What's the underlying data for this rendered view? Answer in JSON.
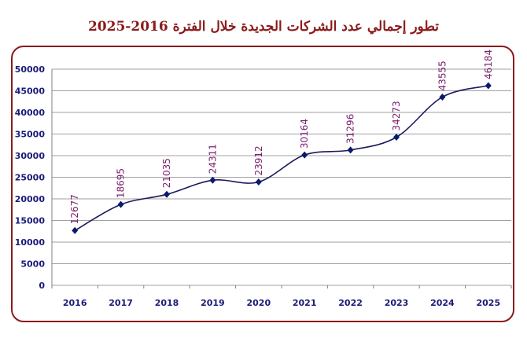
{
  "title": "تطور إجمالي عدد الشركات الجديدة خلال الفترة 2016-2025",
  "chart_data": {
    "type": "line",
    "title": "تطور إجمالي عدد الشركات الجديدة خلال الفترة 2016-2025",
    "categories": [
      "2016",
      "2017",
      "2018",
      "2019",
      "2020",
      "2021",
      "2022",
      "2023",
      "2024",
      "2025"
    ],
    "series": [
      {
        "values": [
          12677,
          18695,
          21035,
          24311,
          23912,
          30164,
          31296,
          34273,
          43555,
          46184
        ]
      }
    ],
    "yticks": [
      0,
      5000,
      10000,
      15000,
      20000,
      25000,
      30000,
      35000,
      40000,
      45000,
      50000
    ],
    "ylim": [
      0,
      50000
    ],
    "xlabel": "",
    "ylabel": "",
    "grid": true,
    "legend": "none",
    "colors": {
      "line": "#1a1a5e",
      "marker": "#0b1a6b",
      "data_label": "#7a1f6e",
      "tick": "#1a1a7a",
      "title": "#8b1a1a",
      "grid": "#a0a0a0",
      "frame": "#8b1a1a"
    }
  }
}
